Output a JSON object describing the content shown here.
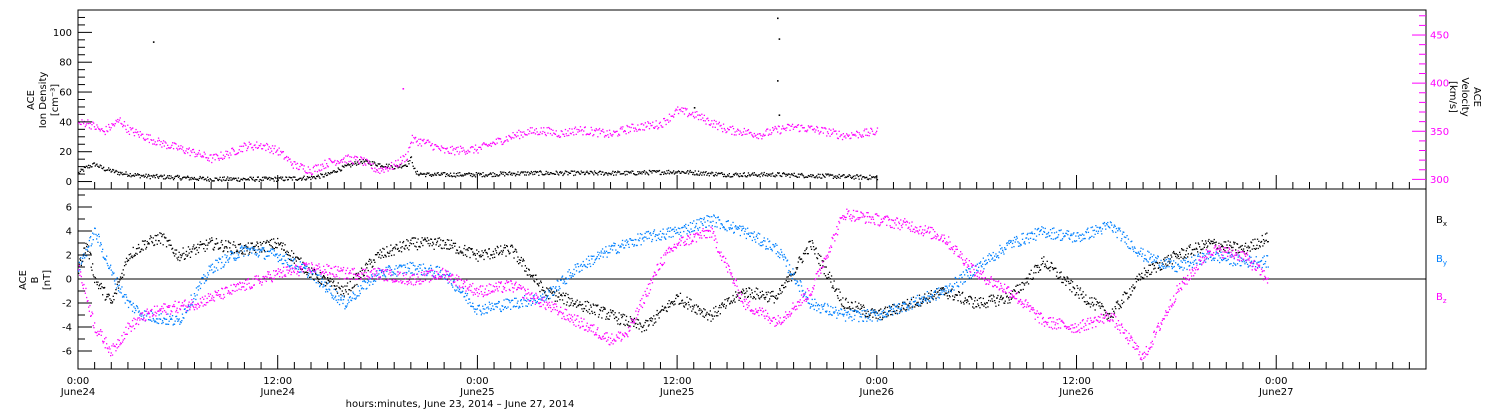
{
  "chart_data": [
    {
      "type": "scatter",
      "ylabel_left": [
        "ACE",
        "Ion Density",
        "[cm⁻³]"
      ],
      "ylabel_right": [
        "ACE",
        "Velocity",
        "[km/s]"
      ],
      "ylim_left": [
        -5,
        115
      ],
      "yticks_left": [
        "0",
        "20",
        "40",
        "60",
        "80",
        "100"
      ],
      "ylim_right": [
        290,
        476
      ],
      "yticks_right": [
        "300",
        "350",
        "400",
        "450"
      ],
      "grid": false,
      "series": [
        {
          "axis": "left",
          "color": "#000000",
          "x": [
            0.0,
            0.5,
            1.0,
            2.0,
            3.0,
            5.0,
            8.0,
            12.0,
            16.0,
            20.0,
            24.0,
            28.0,
            30.0,
            31.0,
            32.0,
            33.0,
            34.0,
            36.0,
            38.0,
            39.5,
            40.0,
            40.5,
            42.0,
            48.0,
            54.0,
            60.0,
            66.0,
            72.0,
            78.0,
            84.0,
            90.0,
            96.0
          ],
          "y": [
            6,
            8,
            10,
            12,
            9,
            6,
            4,
            3,
            2,
            2,
            2,
            3,
            5,
            8,
            10,
            12,
            14,
            12,
            10,
            12,
            16,
            6,
            5,
            5,
            6,
            6,
            6,
            7,
            5,
            5,
            4,
            3
          ]
        },
        {
          "axis": "right",
          "color": "#ff00ff",
          "x": [
            0.0,
            1.0,
            2.0,
            3.0,
            5.0,
            6.0,
            8.0,
            10.0,
            12.0,
            14.0,
            16.0,
            18.0,
            20.0,
            22.0,
            24.0,
            26.0,
            28.0,
            30.0,
            32.0,
            34.0,
            36.0,
            38.0,
            39.5,
            40.0,
            42.0,
            44.0,
            48.0,
            52.0,
            54.0,
            56.0,
            58.0,
            60.0,
            62.0,
            64.0,
            66.0,
            68.0,
            70.0,
            72.0,
            74.0,
            76.0,
            78.0,
            80.0,
            82.0,
            84.0,
            86.0,
            88.0,
            90.0,
            92.0,
            94.0,
            96.0
          ],
          "y": [
            358,
            360,
            355,
            350,
            362,
            352,
            345,
            338,
            333,
            328,
            322,
            327,
            335,
            336,
            330,
            315,
            310,
            318,
            322,
            320,
            310,
            315,
            325,
            342,
            338,
            330,
            332,
            345,
            350,
            351,
            348,
            352,
            350,
            347,
            353,
            356,
            358,
            372,
            368,
            360,
            352,
            350,
            347,
            352,
            355,
            353,
            350,
            346,
            348,
            350
          ]
        }
      ]
    },
    {
      "type": "scatter",
      "ylabel": [
        "ACE",
        "B",
        "[nT]"
      ],
      "ylim": [
        -7.5,
        7.5
      ],
      "yticks": [
        "-6",
        "-4",
        "-2",
        "0",
        "2",
        "4",
        "6"
      ],
      "xlabel": "hours:minutes, June 23, 2014 – June 27, 2014",
      "x_ticks": [
        {
          "h": 0,
          "time": "0:00",
          "date": "June24"
        },
        {
          "h": 24,
          "time": "12:00",
          "date": "June24"
        },
        {
          "h": 48,
          "time": "0:00",
          "date": "June25"
        },
        {
          "h": 72,
          "time": "12:00",
          "date": "June25"
        },
        {
          "h": 96,
          "time": "0:00",
          "date": "June26"
        },
        {
          "h": 120,
          "time": "12:00",
          "date": "June26"
        },
        {
          "h": 144,
          "time": "0:00",
          "date": "June27"
        }
      ],
      "xlim": [
        0,
        162
      ],
      "zero_line": true,
      "legend": {
        "placement": "right",
        "labels": [
          "B",
          "B",
          "B"
        ],
        "subscripts": [
          "x",
          "y",
          "z"
        ]
      },
      "series": [
        {
          "name": "Bx",
          "color": "#000000",
          "x": [
            0.0,
            1.0,
            2.0,
            4.0,
            6.0,
            8.0,
            10.0,
            12.0,
            16.0,
            20.0,
            24.0,
            28.0,
            32.0,
            36.0,
            40.0,
            44.0,
            48.0,
            52.0,
            56.0,
            60.0,
            64.0,
            68.0,
            72.0,
            76.0,
            80.0,
            84.0,
            88.0,
            92.0,
            96.0,
            100.0,
            104.0,
            108.0,
            112.0,
            116.0,
            120.0,
            124.0,
            128.0,
            132.0,
            136.0,
            140.0,
            143.0
          ],
          "y": [
            1.0,
            3.0,
            0.0,
            -2.0,
            2.0,
            3.0,
            3.5,
            2.0,
            3.0,
            2.5,
            3.0,
            0.5,
            -1.0,
            2.0,
            3.0,
            3.0,
            2.0,
            2.5,
            -1.0,
            -2.0,
            -3.0,
            -4.0,
            -1.5,
            -3.0,
            -1.0,
            -1.5,
            3.0,
            -2.0,
            -3.0,
            -2.0,
            -1.0,
            -2.0,
            -1.5,
            1.5,
            -1.0,
            -3.0,
            0.5,
            2.0,
            3.0,
            2.5,
            3.5
          ]
        },
        {
          "name": "By",
          "color": "#0080ff",
          "x": [
            0.0,
            2.0,
            4.0,
            6.0,
            8.0,
            12.0,
            16.0,
            20.0,
            24.0,
            28.0,
            32.0,
            36.0,
            40.0,
            44.0,
            48.0,
            52.0,
            56.0,
            60.0,
            64.0,
            68.0,
            72.0,
            76.0,
            80.0,
            84.0,
            88.0,
            92.0,
            96.0,
            100.0,
            104.0,
            108.0,
            112.0,
            116.0,
            120.0,
            124.0,
            128.0,
            132.0,
            136.0,
            140.0,
            143.0
          ],
          "y": [
            1.0,
            4.0,
            0.5,
            -2.0,
            -3.0,
            -3.5,
            1.0,
            2.5,
            2.0,
            0.5,
            -2.0,
            0.5,
            1.0,
            0.5,
            -2.5,
            -2.0,
            -1.5,
            1.0,
            2.5,
            3.5,
            4.0,
            5.0,
            4.0,
            2.5,
            -2.0,
            -3.0,
            -3.0,
            -2.0,
            -1.0,
            1.0,
            3.0,
            4.0,
            3.5,
            4.5,
            2.0,
            1.0,
            2.0,
            1.5,
            1.5
          ]
        },
        {
          "name": "Bz",
          "color": "#ff00ff",
          "x": [
            0.0,
            2.0,
            4.0,
            6.0,
            8.0,
            10.0,
            14.0,
            18.0,
            24.0,
            28.0,
            32.0,
            36.0,
            40.0,
            44.0,
            48.0,
            52.0,
            56.0,
            60.0,
            64.0,
            66.0,
            70.0,
            72.0,
            76.0,
            80.0,
            84.0,
            88.0,
            92.0,
            96.0,
            100.0,
            104.0,
            108.0,
            112.0,
            116.0,
            120.0,
            124.0,
            128.0,
            132.0,
            136.0,
            140.0,
            143.0
          ],
          "y": [
            1.0,
            -4.0,
            -6.0,
            -4.0,
            -3.0,
            -2.5,
            -2.0,
            -1.0,
            0.5,
            1.0,
            0.5,
            0.5,
            0.0,
            0.5,
            -1.0,
            -0.5,
            -2.0,
            -3.5,
            -5.0,
            -4.5,
            1.5,
            3.0,
            4.0,
            -2.0,
            -3.5,
            -1.0,
            5.5,
            5.0,
            4.5,
            3.5,
            0.5,
            -1.0,
            -3.5,
            -4.0,
            -3.0,
            -6.5,
            -1.0,
            2.5,
            2.0,
            0.0
          ]
        }
      ]
    }
  ],
  "outliers": {
    "density_spikes": [
      {
        "x": 9.0,
        "y": 94
      },
      {
        "x": 74.0,
        "y": 50
      },
      {
        "x": 84.0,
        "y": 110
      },
      {
        "x": 84.2,
        "y": 96
      },
      {
        "x": 84.0,
        "y": 68
      },
      {
        "x": 84.2,
        "y": 45
      }
    ],
    "velocity_spikes": [
      {
        "x": 39.0,
        "y": 395
      }
    ]
  }
}
